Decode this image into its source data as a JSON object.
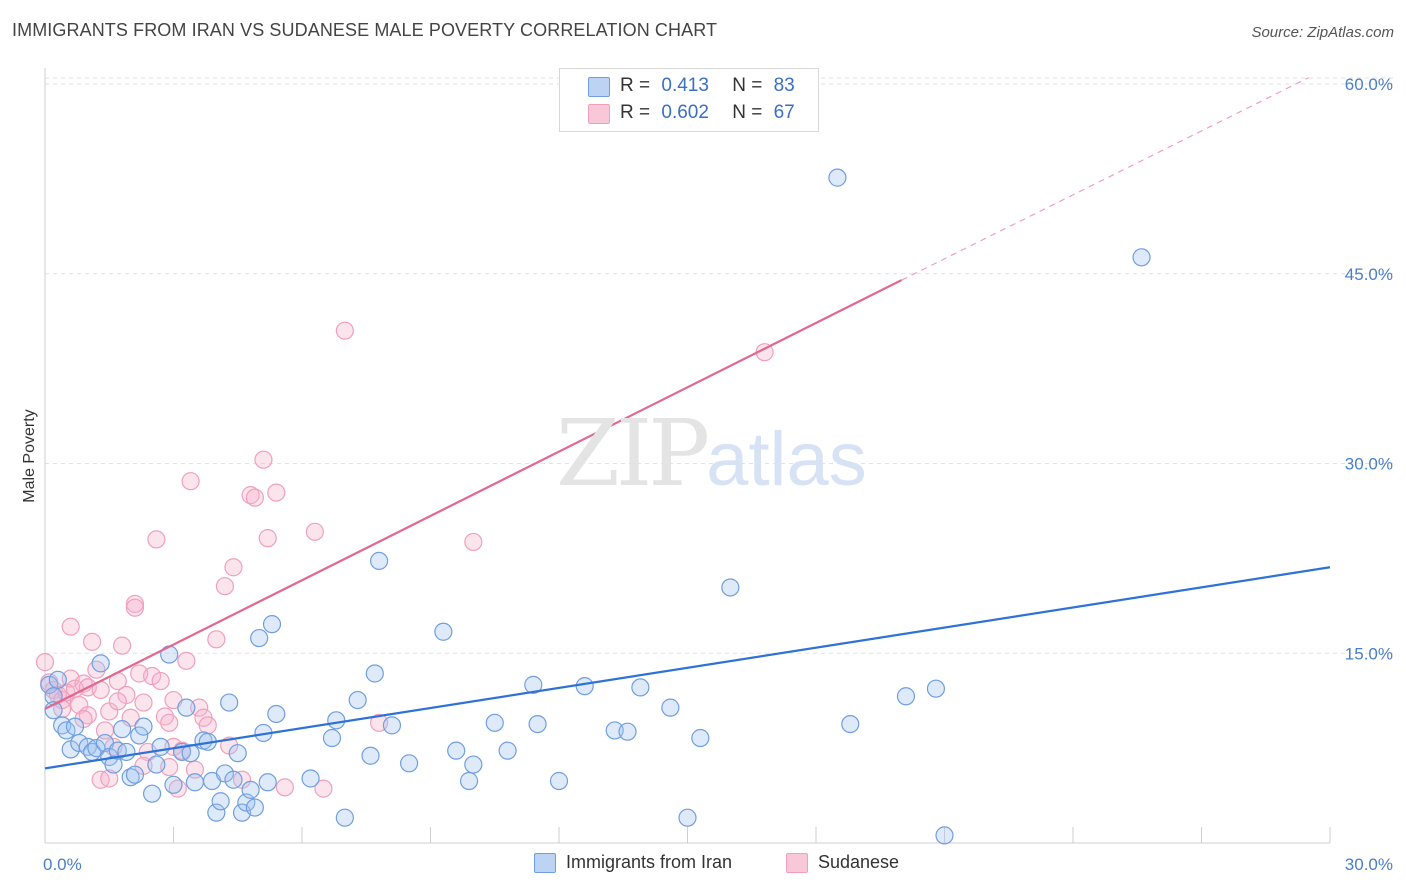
{
  "header": {
    "title": "IMMIGRANTS FROM IRAN VS SUDANESE MALE POVERTY CORRELATION CHART",
    "source": "Source: ZipAtlas.com"
  },
  "legend": {
    "r_label": "R =",
    "n_label": "N =",
    "series1": {
      "r": "0.413",
      "n": "83"
    },
    "series2": {
      "r": "0.602",
      "n": "67"
    }
  },
  "bottom_legend": {
    "series1": "Immigrants from Iran",
    "series2": "Sudanese"
  },
  "watermark": {
    "zip": "ZIP",
    "atlas": "atlas"
  },
  "chart_data": {
    "type": "scatter",
    "title": "IMMIGRANTS FROM IRAN VS SUDANESE MALE POVERTY CORRELATION CHART",
    "xlabel": "",
    "ylabel": "Male Poverty",
    "xlim": [
      0,
      30
    ],
    "ylim": [
      0,
      60
    ],
    "x_tick_labels": [
      "0.0%",
      "30.0%"
    ],
    "y_tick_labels": [
      "15.0%",
      "30.0%",
      "45.0%",
      "60.0%"
    ],
    "y_ticks": [
      15,
      30,
      45,
      60
    ],
    "grid": true,
    "legend_position": "top-center",
    "colors": {
      "series1": "#6f9fe0",
      "series1_line": "#2f72d6",
      "series2": "#f0a0bc",
      "series2_line": "#e0698f"
    },
    "series": [
      {
        "name": "Immigrants from Iran",
        "r": 0.413,
        "n": 83,
        "trend": {
          "x": [
            0,
            30
          ],
          "y": [
            5.9,
            21.8
          ]
        },
        "points": [
          [
            0.1,
            12.5
          ],
          [
            0.2,
            11.6
          ],
          [
            0.2,
            10.5
          ],
          [
            0.3,
            12.9
          ],
          [
            0.4,
            9.3
          ],
          [
            0.5,
            8.9
          ],
          [
            0.6,
            7.4
          ],
          [
            0.7,
            9.2
          ],
          [
            0.8,
            7.9
          ],
          [
            1.0,
            7.6
          ],
          [
            1.1,
            7.2
          ],
          [
            1.2,
            7.5
          ],
          [
            1.3,
            14.2
          ],
          [
            1.4,
            7.9
          ],
          [
            1.5,
            6.8
          ],
          [
            1.6,
            6.2
          ],
          [
            1.7,
            7.3
          ],
          [
            1.8,
            9.0
          ],
          [
            1.9,
            7.2
          ],
          [
            2.0,
            5.2
          ],
          [
            2.1,
            5.4
          ],
          [
            2.2,
            8.5
          ],
          [
            2.3,
            9.2
          ],
          [
            2.5,
            3.9
          ],
          [
            2.6,
            6.2
          ],
          [
            2.7,
            7.6
          ],
          [
            2.9,
            14.9
          ],
          [
            3.0,
            4.6
          ],
          [
            3.2,
            7.2
          ],
          [
            3.3,
            10.7
          ],
          [
            3.4,
            7.1
          ],
          [
            3.5,
            4.8
          ],
          [
            3.7,
            8.1
          ],
          [
            3.8,
            8.0
          ],
          [
            3.9,
            4.9
          ],
          [
            4.0,
            2.4
          ],
          [
            4.1,
            3.3
          ],
          [
            4.2,
            5.5
          ],
          [
            4.3,
            11.1
          ],
          [
            4.4,
            5.0
          ],
          [
            4.5,
            7.1
          ],
          [
            4.6,
            2.4
          ],
          [
            4.7,
            3.2
          ],
          [
            4.8,
            4.2
          ],
          [
            4.9,
            2.8
          ],
          [
            5.0,
            16.2
          ],
          [
            5.1,
            8.7
          ],
          [
            5.2,
            4.8
          ],
          [
            5.3,
            17.3
          ],
          [
            5.4,
            10.2
          ],
          [
            6.2,
            5.1
          ],
          [
            6.7,
            8.3
          ],
          [
            6.8,
            9.7
          ],
          [
            7.0,
            2.0
          ],
          [
            7.3,
            11.3
          ],
          [
            7.6,
            6.9
          ],
          [
            7.7,
            13.4
          ],
          [
            7.8,
            22.3
          ],
          [
            8.1,
            9.3
          ],
          [
            8.5,
            6.3
          ],
          [
            9.3,
            16.7
          ],
          [
            9.6,
            7.3
          ],
          [
            9.9,
            4.9
          ],
          [
            10.0,
            6.2
          ],
          [
            10.5,
            9.5
          ],
          [
            10.8,
            7.3
          ],
          [
            11.4,
            12.5
          ],
          [
            11.5,
            9.4
          ],
          [
            12.0,
            4.9
          ],
          [
            12.6,
            12.4
          ],
          [
            13.3,
            8.9
          ],
          [
            13.6,
            8.8
          ],
          [
            13.9,
            12.3
          ],
          [
            14.6,
            10.7
          ],
          [
            15.0,
            2.0
          ],
          [
            15.3,
            8.3
          ],
          [
            16.0,
            20.2
          ],
          [
            18.5,
            52.6
          ],
          [
            18.8,
            9.4
          ],
          [
            20.1,
            11.6
          ],
          [
            20.8,
            12.2
          ],
          [
            21.0,
            0.6
          ],
          [
            25.6,
            46.3
          ]
        ]
      },
      {
        "name": "Sudanese",
        "r": 0.602,
        "n": 67,
        "trend": {
          "x": [
            0,
            20
          ],
          "y": [
            10.6,
            44.5
          ]
        },
        "trend_dashed": {
          "x": [
            20,
            29.5
          ],
          "y": [
            44.5,
            60.5
          ]
        },
        "points": [
          [
            0.0,
            14.3
          ],
          [
            0.1,
            12.7
          ],
          [
            0.2,
            12.1
          ],
          [
            0.3,
            11.7
          ],
          [
            0.4,
            11.3
          ],
          [
            0.5,
            11.9
          ],
          [
            0.6,
            13.0
          ],
          [
            0.6,
            17.1
          ],
          [
            0.7,
            12.2
          ],
          [
            0.8,
            10.9
          ],
          [
            0.9,
            12.6
          ],
          [
            1.0,
            12.3
          ],
          [
            1.0,
            10.1
          ],
          [
            1.1,
            15.9
          ],
          [
            1.2,
            13.7
          ],
          [
            1.3,
            12.1
          ],
          [
            1.4,
            8.9
          ],
          [
            1.5,
            10.4
          ],
          [
            1.6,
            7.6
          ],
          [
            1.7,
            12.8
          ],
          [
            1.8,
            15.6
          ],
          [
            1.9,
            11.7
          ],
          [
            2.0,
            9.9
          ],
          [
            2.1,
            18.9
          ],
          [
            2.1,
            18.6
          ],
          [
            2.2,
            13.4
          ],
          [
            2.3,
            11.1
          ],
          [
            2.4,
            7.2
          ],
          [
            2.5,
            13.2
          ],
          [
            2.6,
            24.0
          ],
          [
            2.7,
            12.8
          ],
          [
            2.8,
            10.0
          ],
          [
            2.9,
            9.5
          ],
          [
            3.0,
            7.6
          ],
          [
            3.1,
            4.3
          ],
          [
            3.2,
            7.3
          ],
          [
            3.3,
            14.4
          ],
          [
            3.4,
            28.6
          ],
          [
            3.5,
            5.8
          ],
          [
            3.6,
            10.7
          ],
          [
            3.7,
            9.9
          ],
          [
            3.8,
            9.3
          ],
          [
            4.0,
            16.1
          ],
          [
            4.2,
            20.3
          ],
          [
            4.4,
            21.8
          ],
          [
            4.6,
            5.0
          ],
          [
            4.8,
            27.5
          ],
          [
            4.9,
            27.3
          ],
          [
            5.1,
            30.3
          ],
          [
            5.2,
            24.1
          ],
          [
            5.4,
            27.7
          ],
          [
            5.6,
            4.4
          ],
          [
            6.3,
            24.6
          ],
          [
            6.5,
            4.3
          ],
          [
            7.0,
            40.5
          ],
          [
            7.8,
            9.5
          ],
          [
            10.0,
            23.8
          ],
          [
            16.8,
            38.8
          ],
          [
            1.3,
            5.0
          ],
          [
            0.9,
            9.8
          ],
          [
            1.7,
            11.2
          ],
          [
            2.3,
            6.1
          ],
          [
            0.4,
            10.6
          ],
          [
            3.0,
            11.3
          ],
          [
            1.5,
            5.1
          ],
          [
            2.9,
            6.0
          ],
          [
            4.3,
            7.7
          ]
        ]
      }
    ]
  }
}
